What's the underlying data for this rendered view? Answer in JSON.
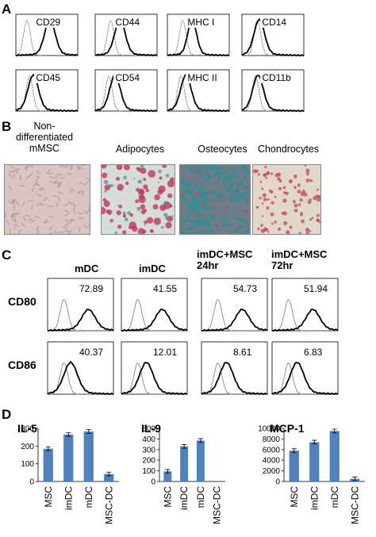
{
  "panels": {
    "A": "A",
    "B": "B",
    "C": "C",
    "D": "D"
  },
  "panel_a": {
    "markers": [
      "CD29",
      "CD44",
      "MHC I",
      "CD14",
      "CD45",
      "CD54",
      "MHC II",
      "CD11b"
    ]
  },
  "panel_b": {
    "titles": [
      "Non-\ndifferentiated\nmMSC",
      "Adipocytes",
      "Osteocytes",
      "Chondrocytes"
    ]
  },
  "panel_c": {
    "columns": [
      "mDC",
      "imDC",
      "imDC+MSC\n24hr",
      "imDC+MSC\n72hr"
    ],
    "rows": [
      "CD80",
      "CD86"
    ],
    "values": [
      [
        "72.89",
        "41.55",
        "54.73",
        "51.94"
      ],
      [
        "40.37",
        "12.01",
        "8.61",
        "6.83"
      ]
    ]
  },
  "chart_data": [
    {
      "type": "bar",
      "title": "IL-5",
      "categories": [
        "MSC",
        "imDC",
        "mDC",
        "MSC-DC"
      ],
      "values": [
        185,
        265,
        282,
        42
      ],
      "yticks": [
        "0",
        "100",
        "200",
        "300"
      ],
      "ylim": [
        0,
        300
      ],
      "color": "#4f81bd"
    },
    {
      "type": "bar",
      "title": "IL-9",
      "categories": [
        "MSC",
        "imDC",
        "mDC",
        "MSC-DC"
      ],
      "values": [
        95,
        330,
        385,
        0
      ],
      "yticks": [
        "0",
        "100",
        "200",
        "300",
        "400",
        "500"
      ],
      "ylim": [
        0,
        500
      ],
      "color": "#4f81bd"
    },
    {
      "type": "bar",
      "title": "MCP-1",
      "categories": [
        "MSC",
        "imDC",
        "mDC",
        "MSC-DC"
      ],
      "values": [
        5800,
        7400,
        9500,
        500
      ],
      "yticks": [
        "0",
        "2000",
        "4000",
        "6000",
        "8000",
        "10000"
      ],
      "ylim": [
        0,
        10000
      ],
      "color": "#4f81bd"
    }
  ]
}
